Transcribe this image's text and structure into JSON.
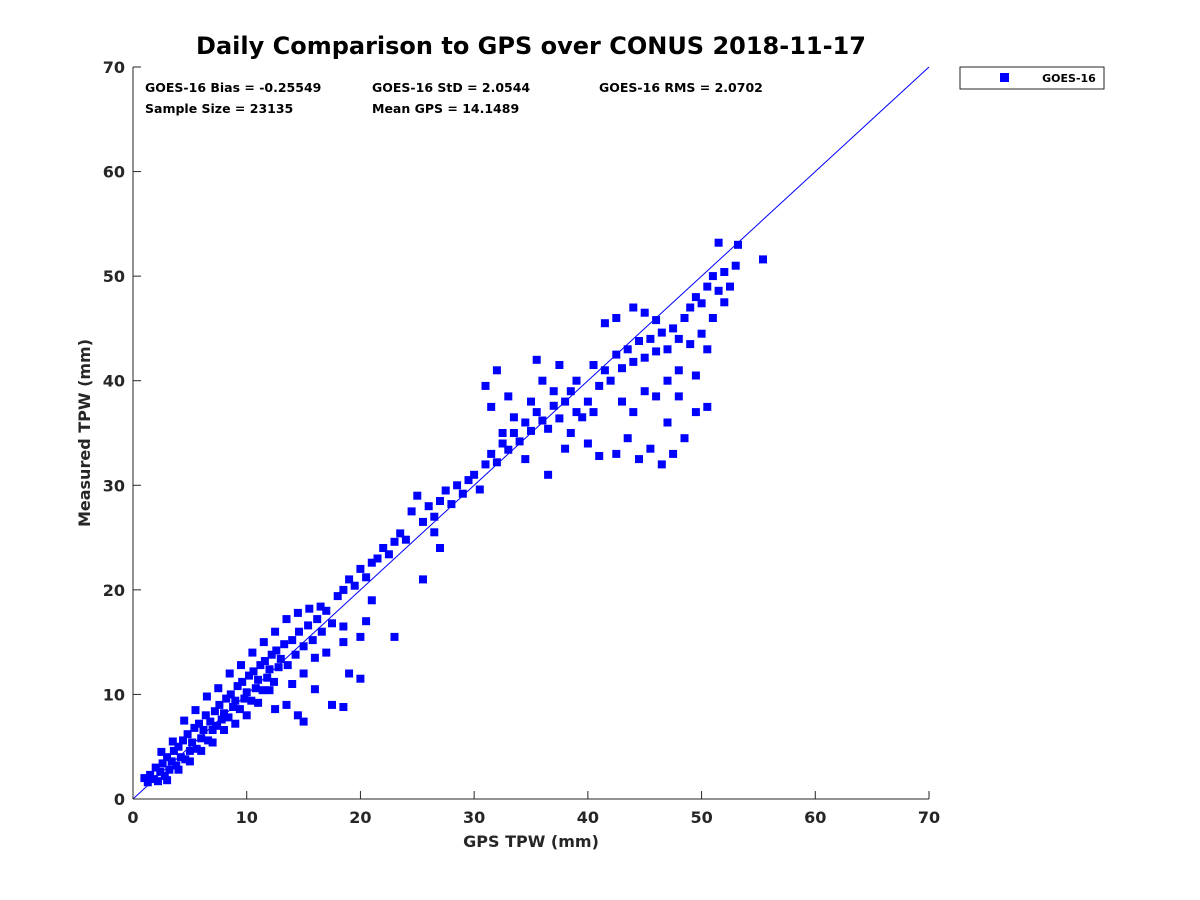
{
  "chart_data": {
    "type": "scatter",
    "title": "Daily Comparison to GPS over CONUS 2018-11-17",
    "xlabel": "GPS TPW (mm)",
    "ylabel": "Measured TPW (mm)",
    "xlim": [
      0,
      70
    ],
    "ylim": [
      0,
      70
    ],
    "xticks": [
      "0",
      "10",
      "20",
      "30",
      "40",
      "50",
      "60",
      "70"
    ],
    "yticks": [
      "0",
      "10",
      "20",
      "30",
      "40",
      "50",
      "60",
      "70"
    ],
    "grid": false,
    "legend_position": "outside-top-right",
    "reference_line": {
      "x": [
        0,
        70
      ],
      "y": [
        0,
        70
      ],
      "color": "#0000ff"
    },
    "stats": {
      "bias": "GOES-16 Bias = -0.25549",
      "std": "GOES-16 StD = 2.0544",
      "rms": "GOES-16 RMS = 2.0702",
      "sample_size": "Sample Size = 23135",
      "mean_gps": "Mean GPS = 14.1489"
    },
    "series": [
      {
        "name": "GOES-16",
        "color": "#0000ff",
        "marker": "square",
        "points": [
          [
            1.0,
            2.0
          ],
          [
            1.3,
            1.6
          ],
          [
            1.5,
            2.3
          ],
          [
            1.8,
            1.9
          ],
          [
            2.0,
            3.0
          ],
          [
            2.2,
            1.7
          ],
          [
            2.4,
            2.6
          ],
          [
            2.6,
            3.4
          ],
          [
            2.8,
            2.2
          ],
          [
            3.0,
            4.0
          ],
          [
            3.2,
            2.8
          ],
          [
            3.4,
            3.6
          ],
          [
            3.6,
            4.6
          ],
          [
            3.8,
            3.2
          ],
          [
            4.0,
            5.0
          ],
          [
            4.2,
            4.0
          ],
          [
            4.4,
            5.6
          ],
          [
            4.6,
            3.8
          ],
          [
            4.8,
            6.2
          ],
          [
            5.0,
            4.6
          ],
          [
            5.2,
            5.4
          ],
          [
            5.4,
            6.8
          ],
          [
            5.6,
            4.8
          ],
          [
            5.8,
            7.2
          ],
          [
            6.0,
            5.8
          ],
          [
            6.2,
            6.6
          ],
          [
            6.4,
            8.0
          ],
          [
            6.6,
            5.6
          ],
          [
            6.8,
            7.4
          ],
          [
            7.0,
            6.6
          ],
          [
            7.2,
            8.4
          ],
          [
            7.4,
            7.0
          ],
          [
            7.6,
            9.0
          ],
          [
            7.8,
            7.6
          ],
          [
            8.0,
            8.2
          ],
          [
            8.2,
            9.6
          ],
          [
            8.4,
            7.8
          ],
          [
            8.6,
            10.0
          ],
          [
            8.8,
            8.8
          ],
          [
            9.0,
            9.4
          ],
          [
            9.2,
            10.8
          ],
          [
            9.4,
            8.6
          ],
          [
            9.6,
            11.2
          ],
          [
            9.8,
            9.6
          ],
          [
            10.0,
            10.2
          ],
          [
            10.2,
            11.8
          ],
          [
            10.4,
            9.4
          ],
          [
            10.6,
            12.2
          ],
          [
            10.8,
            10.6
          ],
          [
            11.0,
            11.4
          ],
          [
            11.2,
            12.8
          ],
          [
            11.4,
            10.4
          ],
          [
            11.6,
            13.2
          ],
          [
            11.8,
            11.6
          ],
          [
            12.0,
            12.4
          ],
          [
            12.2,
            13.8
          ],
          [
            12.4,
            11.2
          ],
          [
            12.6,
            14.2
          ],
          [
            12.8,
            12.6
          ],
          [
            13.0,
            13.4
          ],
          [
            13.3,
            14.8
          ],
          [
            13.6,
            12.8
          ],
          [
            14.0,
            15.2
          ],
          [
            14.3,
            13.8
          ],
          [
            14.6,
            16.0
          ],
          [
            15.0,
            14.6
          ],
          [
            15.4,
            16.6
          ],
          [
            15.8,
            15.2
          ],
          [
            16.2,
            17.2
          ],
          [
            16.6,
            16.0
          ],
          [
            3.0,
            1.8
          ],
          [
            4.0,
            2.8
          ],
          [
            5.0,
            3.6
          ],
          [
            6.0,
            4.6
          ],
          [
            7.0,
            5.4
          ],
          [
            8.0,
            6.6
          ],
          [
            9.0,
            7.2
          ],
          [
            10.0,
            8.0
          ],
          [
            11.0,
            9.2
          ],
          [
            12.0,
            10.4
          ],
          [
            2.5,
            4.5
          ],
          [
            3.5,
            5.5
          ],
          [
            4.5,
            7.5
          ],
          [
            5.5,
            8.5
          ],
          [
            6.5,
            9.8
          ],
          [
            7.5,
            10.6
          ],
          [
            8.5,
            12.0
          ],
          [
            9.5,
            12.8
          ],
          [
            10.5,
            14.0
          ],
          [
            11.5,
            15.0
          ],
          [
            12.5,
            16.0
          ],
          [
            13.5,
            17.2
          ],
          [
            14.5,
            17.8
          ],
          [
            15.5,
            18.2
          ],
          [
            16.5,
            18.4
          ],
          [
            17.0,
            18.0
          ],
          [
            17.5,
            16.8
          ],
          [
            18.0,
            19.4
          ],
          [
            18.5,
            20.0
          ],
          [
            19.0,
            21.0
          ],
          [
            19.5,
            20.4
          ],
          [
            20.0,
            22.0
          ],
          [
            20.5,
            21.2
          ],
          [
            21.0,
            22.6
          ],
          [
            21.5,
            23.0
          ],
          [
            22.0,
            24.0
          ],
          [
            22.5,
            23.4
          ],
          [
            23.0,
            24.6
          ],
          [
            23.5,
            25.4
          ],
          [
            24.0,
            24.8
          ],
          [
            14.0,
            11.0
          ],
          [
            15.0,
            12.0
          ],
          [
            16.0,
            13.5
          ],
          [
            17.0,
            14.0
          ],
          [
            18.5,
            15.0
          ],
          [
            20.0,
            15.5
          ],
          [
            16.0,
            10.5
          ],
          [
            17.5,
            9.0
          ],
          [
            18.5,
            8.8
          ],
          [
            14.5,
            8.0
          ],
          [
            15.0,
            7.4
          ],
          [
            12.5,
            8.6
          ],
          [
            13.5,
            9.0
          ],
          [
            19.0,
            12.0
          ],
          [
            20.0,
            11.5
          ],
          [
            21.0,
            19.0
          ],
          [
            23.0,
            15.5
          ],
          [
            25.5,
            21.0
          ],
          [
            18.5,
            16.5
          ],
          [
            20.5,
            17.0
          ],
          [
            24.5,
            27.5
          ],
          [
            25.0,
            29.0
          ],
          [
            25.5,
            26.5
          ],
          [
            26.0,
            28.0
          ],
          [
            26.5,
            27.0
          ],
          [
            27.0,
            28.5
          ],
          [
            27.5,
            29.5
          ],
          [
            28.0,
            28.2
          ],
          [
            28.5,
            30.0
          ],
          [
            29.0,
            29.2
          ],
          [
            29.5,
            30.5
          ],
          [
            30.0,
            31.0
          ],
          [
            30.5,
            29.6
          ],
          [
            31.0,
            32.0
          ],
          [
            31.5,
            33.0
          ],
          [
            32.0,
            32.2
          ],
          [
            32.5,
            34.0
          ],
          [
            33.0,
            33.4
          ],
          [
            33.5,
            35.0
          ],
          [
            34.0,
            34.2
          ],
          [
            34.5,
            36.0
          ],
          [
            35.0,
            35.2
          ],
          [
            35.5,
            37.0
          ],
          [
            36.0,
            36.2
          ],
          [
            36.5,
            35.4
          ],
          [
            37.0,
            37.6
          ],
          [
            37.5,
            36.4
          ],
          [
            38.0,
            38.0
          ],
          [
            38.5,
            35.0
          ],
          [
            39.0,
            37.0
          ],
          [
            26.5,
            25.5
          ],
          [
            27.0,
            24.0
          ],
          [
            31.5,
            37.5
          ],
          [
            31.0,
            39.5
          ],
          [
            32.0,
            41.0
          ],
          [
            33.0,
            38.5
          ],
          [
            35.5,
            42.0
          ],
          [
            36.0,
            40.0
          ],
          [
            37.5,
            41.5
          ],
          [
            38.0,
            33.5
          ],
          [
            36.5,
            31.0
          ],
          [
            34.5,
            32.5
          ],
          [
            33.5,
            36.5
          ],
          [
            32.5,
            35.0
          ],
          [
            35.0,
            38.0
          ],
          [
            37.0,
            39.0
          ],
          [
            39.5,
            36.5
          ],
          [
            40.0,
            38.0
          ],
          [
            40.5,
            37.0
          ],
          [
            41.0,
            39.5
          ],
          [
            41.5,
            41.0
          ],
          [
            42.0,
            40.0
          ],
          [
            42.5,
            42.5
          ],
          [
            43.0,
            41.2
          ],
          [
            43.5,
            43.0
          ],
          [
            44.0,
            41.8
          ],
          [
            44.5,
            43.8
          ],
          [
            45.0,
            42.2
          ],
          [
            45.5,
            44.0
          ],
          [
            46.0,
            42.8
          ],
          [
            46.5,
            44.6
          ],
          [
            47.0,
            43.0
          ],
          [
            47.5,
            45.0
          ],
          [
            48.0,
            44.0
          ],
          [
            48.5,
            46.0
          ],
          [
            49.0,
            47.0
          ],
          [
            49.5,
            48.0
          ],
          [
            50.0,
            47.4
          ],
          [
            50.5,
            49.0
          ],
          [
            51.0,
            50.0
          ],
          [
            51.5,
            48.6
          ],
          [
            52.0,
            50.4
          ],
          [
            52.5,
            49.0
          ],
          [
            53.0,
            51.0
          ],
          [
            53.2,
            53.0
          ],
          [
            51.5,
            53.2
          ],
          [
            55.4,
            51.6
          ],
          [
            50.5,
            43.0
          ],
          [
            49.5,
            37.0
          ],
          [
            48.5,
            34.5
          ],
          [
            47.5,
            33.0
          ],
          [
            46.5,
            32.0
          ],
          [
            45.5,
            33.5
          ],
          [
            44.5,
            32.5
          ],
          [
            43.5,
            34.5
          ],
          [
            42.5,
            33.0
          ],
          [
            41.0,
            32.8
          ],
          [
            40.0,
            34.0
          ],
          [
            42.5,
            46.0
          ],
          [
            44.0,
            47.0
          ],
          [
            45.0,
            46.5
          ],
          [
            46.0,
            45.8
          ],
          [
            41.5,
            45.5
          ],
          [
            40.5,
            41.5
          ],
          [
            47.0,
            40.0
          ],
          [
            48.0,
            41.0
          ],
          [
            49.0,
            43.5
          ],
          [
            50.0,
            44.5
          ],
          [
            51.0,
            46.0
          ],
          [
            52.0,
            47.5
          ],
          [
            43.0,
            38.0
          ],
          [
            44.0,
            37.0
          ],
          [
            45.0,
            39.0
          ],
          [
            46.0,
            38.5
          ],
          [
            47.0,
            36.0
          ],
          [
            48.0,
            38.5
          ],
          [
            49.5,
            40.5
          ],
          [
            50.5,
            37.5
          ],
          [
            39.0,
            40.0
          ],
          [
            38.5,
            39.0
          ]
        ]
      }
    ]
  }
}
